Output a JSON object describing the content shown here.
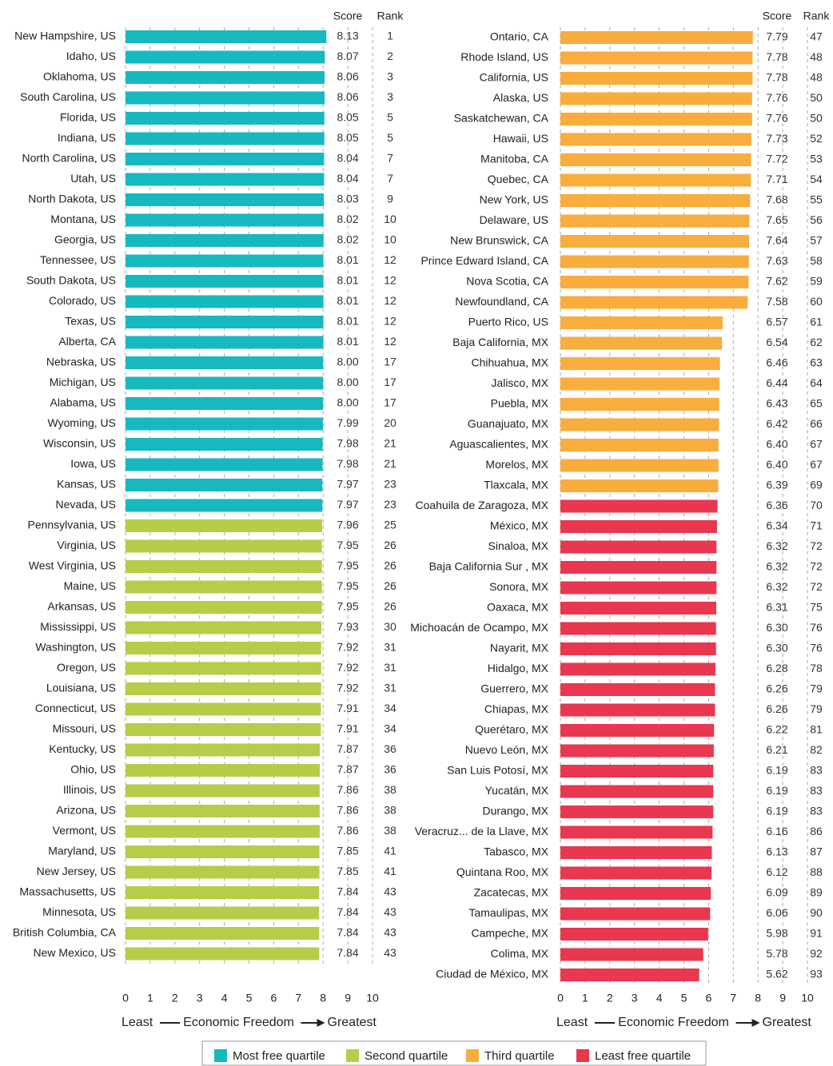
{
  "chart_data": [
    {
      "type": "bar",
      "orientation": "horizontal",
      "score_header": "Score",
      "rank_header": "Rank",
      "categories": [
        "New Hampshire, US",
        "Idaho, US",
        "Oklahoma, US",
        "South Carolina, US",
        "Florida, US",
        "Indiana, US",
        "North Carolina, US",
        "Utah, US",
        "North Dakota, US",
        "Montana, US",
        "Georgia, US",
        "Tennessee, US",
        "South Dakota, US",
        "Colorado, US",
        "Texas, US",
        "Alberta, CA",
        "Nebraska, US",
        "Michigan, US",
        "Alabama, US",
        "Wyoming, US",
        "Wisconsin, US",
        "Iowa, US",
        "Kansas, US",
        "Nevada, US",
        "Pennsylvania, US",
        "Virginia, US",
        "West Virginia, US",
        "Maine, US",
        "Arkansas, US",
        "Mississippi, US",
        "Washington, US",
        "Oregon, US",
        "Louisiana, US",
        "Connecticut, US",
        "Missouri, US",
        "Kentucky, US",
        "Ohio, US",
        "Illinois, US",
        "Arizona, US",
        "Vermont, US",
        "Maryland, US",
        "New Jersey, US",
        "Massachusetts, US",
        "Minnesota, US",
        "British Columbia, CA",
        "New Mexico, US"
      ],
      "values": [
        8.13,
        8.07,
        8.06,
        8.06,
        8.05,
        8.05,
        8.04,
        8.04,
        8.03,
        8.02,
        8.02,
        8.01,
        8.01,
        8.01,
        8.01,
        8.01,
        8.0,
        8.0,
        8.0,
        7.99,
        7.98,
        7.98,
        7.97,
        7.97,
        7.96,
        7.95,
        7.95,
        7.95,
        7.95,
        7.93,
        7.92,
        7.92,
        7.92,
        7.91,
        7.91,
        7.87,
        7.87,
        7.86,
        7.86,
        7.86,
        7.85,
        7.85,
        7.84,
        7.84,
        7.84,
        7.84
      ],
      "value_labels": [
        "8.13",
        "8.07",
        "8.06",
        "8.06",
        "8.05",
        "8.05",
        "8.04",
        "8.04",
        "8.03",
        "8.02",
        "8.02",
        "8.01",
        "8.01",
        "8.01",
        "8.01",
        "8.01",
        "8.00",
        "8.00",
        "8.00",
        "7.99",
        "7.98",
        "7.98",
        "7.97",
        "7.97",
        "7.96",
        "7.95",
        "7.95",
        "7.95",
        "7.95",
        "7.93",
        "7.92",
        "7.92",
        "7.92",
        "7.91",
        "7.91",
        "7.87",
        "7.87",
        "7.86",
        "7.86",
        "7.86",
        "7.85",
        "7.85",
        "7.84",
        "7.84",
        "7.84",
        "7.84"
      ],
      "ranks": [
        1,
        2,
        3,
        3,
        5,
        5,
        7,
        7,
        9,
        10,
        10,
        12,
        12,
        12,
        12,
        12,
        17,
        17,
        17,
        20,
        21,
        21,
        23,
        23,
        25,
        26,
        26,
        26,
        26,
        30,
        31,
        31,
        31,
        34,
        34,
        36,
        36,
        38,
        38,
        38,
        41,
        41,
        43,
        43,
        43,
        43
      ],
      "colors": [
        "#17b9c1",
        "#17b9c1",
        "#17b9c1",
        "#17b9c1",
        "#17b9c1",
        "#17b9c1",
        "#17b9c1",
        "#17b9c1",
        "#17b9c1",
        "#17b9c1",
        "#17b9c1",
        "#17b9c1",
        "#17b9c1",
        "#17b9c1",
        "#17b9c1",
        "#17b9c1",
        "#17b9c1",
        "#17b9c1",
        "#17b9c1",
        "#17b9c1",
        "#17b9c1",
        "#17b9c1",
        "#17b9c1",
        "#17b9c1",
        "#b6cd4a",
        "#b6cd4a",
        "#b6cd4a",
        "#b6cd4a",
        "#b6cd4a",
        "#b6cd4a",
        "#b6cd4a",
        "#b6cd4a",
        "#b6cd4a",
        "#b6cd4a",
        "#b6cd4a",
        "#b6cd4a",
        "#b6cd4a",
        "#b6cd4a",
        "#b6cd4a",
        "#b6cd4a",
        "#b6cd4a",
        "#b6cd4a",
        "#b6cd4a",
        "#b6cd4a",
        "#b6cd4a",
        "#b6cd4a"
      ],
      "xlim": [
        0,
        10
      ],
      "xticks": [
        0,
        1,
        2,
        3,
        4,
        5,
        6,
        7,
        8,
        9,
        10
      ],
      "grid": true,
      "xlabel_left": "Least",
      "xlabel": "Economic Freedom",
      "xlabel_right": "Greatest"
    },
    {
      "type": "bar",
      "orientation": "horizontal",
      "score_header": "Score",
      "rank_header": "Rank",
      "categories": [
        "Ontario, CA",
        "Rhode Island, US",
        "California, US",
        "Alaska, US",
        "Saskatchewan, CA",
        "Hawaii, US",
        "Manitoba, CA",
        "Quebec, CA",
        "New York, US",
        "Delaware, US",
        "New Brunswick, CA",
        "Prince Edward Island, CA",
        "Nova Scotia, CA",
        "Newfoundland, CA",
        "Puerto Rico, US",
        "Baja California, MX",
        "Chihuahua, MX",
        "Jalisco, MX",
        "Puebla, MX",
        "Guanajuato, MX",
        "Aguascalientes, MX",
        "Morelos, MX",
        "Tlaxcala, MX",
        "Coahuila de Zaragoza, MX",
        "México, MX",
        "Sinaloa, MX",
        "Baja California Sur , MX",
        "Sonora, MX",
        "Oaxaca, MX",
        "Michoacán de Ocampo, MX",
        "Nayarit, MX",
        "Hidalgo, MX",
        "Guerrero, MX",
        "Chiapas, MX",
        "Querétaro, MX",
        "Nuevo León, MX",
        "San Luis Potosí, MX",
        "Yucatán, MX",
        "Durango, MX",
        "Veracruz... de la Llave, MX",
        "Tabasco, MX",
        "Quintana Roo, MX",
        "Zacatecas, MX",
        "Tamaulipas, MX",
        "Campeche, MX",
        "Colima, MX",
        "Ciudad de México, MX"
      ],
      "values": [
        7.79,
        7.78,
        7.78,
        7.76,
        7.76,
        7.73,
        7.72,
        7.71,
        7.68,
        7.65,
        7.64,
        7.63,
        7.62,
        7.58,
        6.57,
        6.54,
        6.46,
        6.44,
        6.43,
        6.42,
        6.4,
        6.4,
        6.39,
        6.36,
        6.34,
        6.32,
        6.32,
        6.32,
        6.31,
        6.3,
        6.3,
        6.28,
        6.26,
        6.26,
        6.22,
        6.21,
        6.19,
        6.19,
        6.19,
        6.16,
        6.13,
        6.12,
        6.09,
        6.06,
        5.98,
        5.78,
        5.62
      ],
      "value_labels": [
        "7.79",
        "7.78",
        "7.78",
        "7.76",
        "7.76",
        "7.73",
        "7.72",
        "7.71",
        "7.68",
        "7.65",
        "7.64",
        "7.63",
        "7.62",
        "7.58",
        "6.57",
        "6.54",
        "6.46",
        "6.44",
        "6.43",
        "6.42",
        "6.40",
        "6.40",
        "6.39",
        "6.36",
        "6.34",
        "6.32",
        "6.32",
        "6.32",
        "6.31",
        "6.30",
        "6.30",
        "6.28",
        "6.26",
        "6.26",
        "6.22",
        "6.21",
        "6.19",
        "6.19",
        "6.19",
        "6.16",
        "6.13",
        "6.12",
        "6.09",
        "6.06",
        "5.98",
        "5.78",
        "5.62"
      ],
      "ranks": [
        47,
        48,
        48,
        50,
        50,
        52,
        53,
        54,
        55,
        56,
        57,
        58,
        59,
        60,
        61,
        62,
        63,
        64,
        65,
        66,
        67,
        67,
        69,
        70,
        71,
        72,
        72,
        72,
        75,
        76,
        76,
        78,
        79,
        79,
        81,
        82,
        83,
        83,
        83,
        86,
        87,
        88,
        89,
        90,
        91,
        92,
        93
      ],
      "colors": [
        "#f9ad3d",
        "#f9ad3d",
        "#f9ad3d",
        "#f9ad3d",
        "#f9ad3d",
        "#f9ad3d",
        "#f9ad3d",
        "#f9ad3d",
        "#f9ad3d",
        "#f9ad3d",
        "#f9ad3d",
        "#f9ad3d",
        "#f9ad3d",
        "#f9ad3d",
        "#f9ad3d",
        "#f9ad3d",
        "#f9ad3d",
        "#f9ad3d",
        "#f9ad3d",
        "#f9ad3d",
        "#f9ad3d",
        "#f9ad3d",
        "#f9ad3d",
        "#e8374f",
        "#e8374f",
        "#e8374f",
        "#e8374f",
        "#e8374f",
        "#e8374f",
        "#e8374f",
        "#e8374f",
        "#e8374f",
        "#e8374f",
        "#e8374f",
        "#e8374f",
        "#e8374f",
        "#e8374f",
        "#e8374f",
        "#e8374f",
        "#e8374f",
        "#e8374f",
        "#e8374f",
        "#e8374f",
        "#e8374f",
        "#e8374f",
        "#e8374f",
        "#e8374f"
      ],
      "xlim": [
        0,
        10
      ],
      "xticks": [
        0,
        1,
        2,
        3,
        4,
        5,
        6,
        7,
        8,
        9,
        10
      ],
      "grid": true,
      "xlabel_left": "Least",
      "xlabel": "Economic Freedom",
      "xlabel_right": "Greatest"
    }
  ],
  "legend": [
    {
      "name": "Most free quartile",
      "color": "#17b9c1"
    },
    {
      "name": "Second quartile",
      "color": "#b6cd4a"
    },
    {
      "name": "Third quartile",
      "color": "#f9ad3d"
    },
    {
      "name": "Least free quartile",
      "color": "#e8374f"
    }
  ]
}
